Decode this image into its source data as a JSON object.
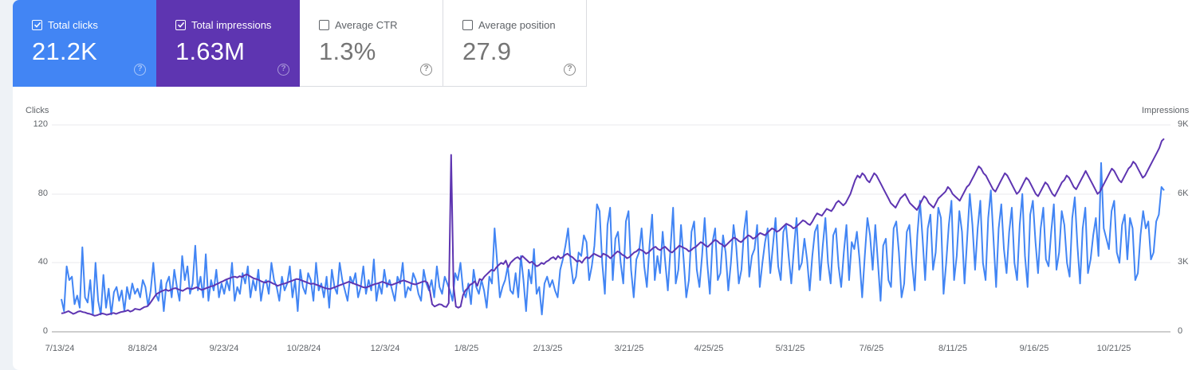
{
  "scorecards": [
    {
      "id": "clicks",
      "label": "Total clicks",
      "value": "21.2K",
      "checked": true,
      "color": "#4285f4"
    },
    {
      "id": "impressions",
      "label": "Total impressions",
      "value": "1.63M",
      "checked": true,
      "color": "#5e35b1"
    },
    {
      "id": "ctr",
      "label": "Average CTR",
      "value": "1.3%",
      "checked": false
    },
    {
      "id": "position",
      "label": "Average position",
      "value": "27.9",
      "checked": false
    }
  ],
  "icons": {
    "help": "help-circle-icon",
    "checkbox": "checkbox-icon"
  },
  "colors": {
    "clicks": "#4285f4",
    "impressions": "#5e35b1",
    "grid": "#e8eaed",
    "baseline": "#9e9e9e",
    "text": "#5f6368"
  },
  "chart_data": {
    "type": "line",
    "title": "",
    "xlabel": "",
    "ylabel": "Clicks",
    "y2label": "Impressions",
    "ylim": [
      0,
      120
    ],
    "y2lim": [
      0,
      9000
    ],
    "yticks": [
      "0",
      "40",
      "80",
      "120"
    ],
    "y2ticks": [
      "0",
      "3K",
      "6K",
      "9K"
    ],
    "grid": true,
    "legend": "scorecards",
    "x_ticks": [
      "7/13/24",
      "8/18/24",
      "9/23/24",
      "10/28/24",
      "12/3/24",
      "1/8/25",
      "2/13/25",
      "3/21/25",
      "4/25/25",
      "5/31/25",
      "7/6/25",
      "8/11/25",
      "9/16/25",
      "10/21/25"
    ],
    "x_start": "7/13/24",
    "x_end": "11/12/25",
    "series": [
      {
        "name": "Clicks",
        "axis": "left",
        "color": "#4285f4",
        "values": [
          19,
          12,
          38,
          30,
          32,
          16,
          21,
          14,
          49,
          20,
          17,
          30,
          10,
          40,
          18,
          10,
          33,
          14,
          25,
          10,
          23,
          26,
          18,
          24,
          12,
          26,
          19,
          28,
          22,
          25,
          20,
          30,
          26,
          15,
          24,
          40,
          22,
          18,
          30,
          12,
          28,
          32,
          20,
          36,
          26,
          18,
          44,
          30,
          38,
          22,
          28,
          50,
          24,
          32,
          20,
          45,
          18,
          30,
          24,
          36,
          20,
          28,
          22,
          30,
          24,
          40,
          18,
          26,
          22,
          34,
          28,
          38,
          20,
          30,
          24,
          36,
          18,
          28,
          30,
          22,
          40,
          30,
          26,
          18,
          32,
          24,
          28,
          38,
          20,
          30,
          12,
          36,
          26,
          22,
          34,
          30,
          18,
          40,
          24,
          28,
          20,
          32,
          14,
          36,
          26,
          22,
          40,
          30,
          24,
          18,
          32,
          28,
          34,
          20,
          26,
          38,
          22,
          30,
          24,
          42,
          18,
          28,
          22,
          36,
          26,
          30,
          24,
          18,
          32,
          28,
          40,
          20,
          26,
          24,
          34,
          30,
          22,
          18,
          36,
          28,
          24,
          30,
          20,
          38,
          26,
          22,
          32,
          28,
          24,
          18,
          34,
          30,
          40,
          24,
          20,
          28,
          16,
          36,
          26,
          22,
          30,
          24,
          14,
          32,
          28,
          60,
          40,
          20,
          26,
          30,
          38,
          24,
          22,
          34,
          20,
          44,
          30,
          12,
          36,
          28,
          48,
          22,
          26,
          10,
          28,
          32,
          26,
          30,
          24,
          20,
          36,
          42,
          50,
          60,
          40,
          28,
          32,
          46,
          44,
          56,
          52,
          30,
          38,
          50,
          74,
          70,
          40,
          22,
          62,
          72,
          30,
          54,
          58,
          40,
          28,
          64,
          70,
          36,
          20,
          42,
          46,
          60,
          38,
          26,
          50,
          68,
          30,
          44,
          34,
          58,
          40,
          24,
          48,
          72,
          28,
          36,
          62,
          42,
          20,
          30,
          58,
          64,
          36,
          26,
          44,
          66,
          40,
          22,
          52,
          60,
          30,
          34,
          56,
          46,
          24,
          40,
          62,
          50,
          28,
          36,
          58,
          70,
          32,
          44,
          48,
          62,
          26,
          40,
          52,
          60,
          34,
          50,
          66,
          38,
          30,
          58,
          62,
          44,
          28,
          48,
          66,
          36,
          40,
          54,
          42,
          24,
          44,
          58,
          62,
          30,
          50,
          66,
          40,
          28,
          56,
          60,
          38,
          26,
          46,
          62,
          30,
          52,
          48,
          58,
          42,
          20,
          44,
          66,
          56,
          36,
          62,
          40,
          18,
          50,
          54,
          30,
          26,
          60,
          64,
          46,
          20,
          28,
          58,
          62,
          40,
          24,
          56,
          76,
          54,
          30,
          60,
          68,
          36,
          46,
          72,
          66,
          22,
          40,
          62,
          76,
          30,
          44,
          70,
          58,
          28,
          54,
          80,
          62,
          36,
          60,
          76,
          40,
          30,
          66,
          82,
          54,
          26,
          60,
          74,
          48,
          34,
          58,
          72,
          40,
          30,
          62,
          80,
          44,
          26,
          68,
          76,
          52,
          34,
          60,
          72,
          42,
          38,
          58,
          74,
          36,
          46,
          70,
          62,
          40,
          32,
          66,
          78,
          50,
          28,
          60,
          72,
          34,
          42,
          56,
          66,
          44,
          98,
          60,
          54,
          48,
          70,
          76,
          46,
          40,
          62,
          68,
          42,
          66,
          60,
          30,
          34,
          56,
          70,
          60,
          64,
          42,
          46,
          64,
          68,
          84,
          82
        ]
      },
      {
        "name": "Impressions",
        "axis": "right",
        "color": "#5e35b1",
        "values": [
          800,
          820,
          860,
          900,
          840,
          780,
          820,
          880,
          900,
          860,
          840,
          800,
          780,
          740,
          700,
          720,
          760,
          800,
          780,
          740,
          760,
          800,
          820,
          780,
          820,
          860,
          880,
          900,
          940,
          880,
          920,
          1000,
          980,
          960,
          1020,
          1080,
          1100,
          1200,
          1350,
          1500,
          1640,
          1700,
          1760,
          1800,
          1840,
          1780,
          1820,
          1880,
          1900,
          1860,
          1820,
          1780,
          1840,
          1900,
          1880,
          1860,
          1900,
          1940,
          1880,
          1820,
          1860,
          1900,
          1940,
          1980,
          2000,
          2060,
          2100,
          2160,
          2200,
          2260,
          2300,
          2340,
          2380,
          2400,
          2360,
          2420,
          2380,
          2460,
          2500,
          2440,
          2380,
          2320,
          2300,
          2260,
          2200,
          2160,
          2140,
          2200,
          2160,
          2100,
          2060,
          2000,
          2040,
          2080,
          2100,
          2140,
          2180,
          2220,
          2260,
          2300,
          2280,
          2240,
          2200,
          2160,
          2120,
          2080,
          2100,
          2060,
          2020,
          1980,
          1940,
          1900,
          1880,
          1860,
          1900,
          1940,
          1980,
          2020,
          2060,
          2100,
          2140,
          2180,
          2140,
          2100,
          2060,
          2020,
          1980,
          1940,
          1920,
          1960,
          2000,
          2040,
          2080,
          2100,
          2140,
          2180,
          2140,
          2100,
          2060,
          2040,
          2080,
          2120,
          2160,
          2200,
          2240,
          2200,
          2160,
          2120,
          2080,
          2060,
          2100,
          2140,
          2180,
          2200,
          2140,
          1800,
          1200,
          1100,
          1150,
          1200,
          1180,
          1100,
          1080,
          1250,
          7700,
          2000,
          1100,
          1050,
          1100,
          1600,
          1800,
          1900,
          2050,
          2100,
          2200,
          2000,
          2300,
          2250,
          2400,
          2500,
          2600,
          2700,
          2650,
          2800,
          2900,
          3000,
          2950,
          3100,
          2800,
          3000,
          3100,
          3200,
          3250,
          3150,
          3300,
          3200,
          3100,
          3000,
          3050,
          2950,
          2850,
          2900,
          3000,
          2950,
          3050,
          3100,
          3200,
          3250,
          3150,
          3300,
          3200,
          3250,
          3350,
          3400,
          3300,
          3250,
          3150,
          3050,
          3100,
          3000,
          3150,
          3250,
          3200,
          3300,
          3400,
          3350,
          3300,
          3250,
          3400,
          3350,
          3300,
          3200,
          3300,
          3400,
          3500,
          3450,
          3350,
          3300,
          3200,
          3250,
          3350,
          3450,
          3500,
          3600,
          3550,
          3500,
          3400,
          3450,
          3550,
          3650,
          3700,
          3600,
          3550,
          3650,
          3700,
          3600,
          3500,
          3450,
          3550,
          3650,
          3750,
          3700,
          3650,
          3600,
          3500,
          3550,
          3650,
          3700,
          3800,
          3900,
          3850,
          3750,
          3700,
          3800,
          3900,
          4000,
          3950,
          3850,
          3800,
          3700,
          3800,
          3900,
          4000,
          4100,
          4050,
          3950,
          3900,
          4000,
          4100,
          4200,
          4150,
          4050,
          4100,
          4200,
          4300,
          4250,
          4200,
          4300,
          4400,
          4500,
          4450,
          4350,
          4400,
          4500,
          4600,
          4700,
          4650,
          4600,
          4500,
          4550,
          4650,
          4750,
          4850,
          4800,
          4700,
          4650,
          4800,
          5000,
          5150,
          5100,
          5050,
          5200,
          5350,
          5300,
          5250,
          5400,
          5600,
          5700,
          5600,
          5500,
          5600,
          5800,
          6000,
          6300,
          6600,
          6800,
          6700,
          6900,
          6800,
          6600,
          6500,
          6700,
          6900,
          6800,
          6600,
          6400,
          6200,
          6000,
          5800,
          5600,
          5500,
          5400,
          5600,
          5800,
          5900,
          6000,
          5800,
          5600,
          5500,
          5400,
          5300,
          5500,
          5700,
          5900,
          5800,
          5600,
          5500,
          5400,
          5600,
          5800,
          5900,
          6000,
          6100,
          6300,
          6200,
          6000,
          5900,
          5800,
          5700,
          5900,
          6100,
          6300,
          6400,
          6600,
          6800,
          7000,
          7200,
          7100,
          6900,
          6800,
          6600,
          6400,
          6200,
          6100,
          6300,
          6500,
          6700,
          6900,
          6800,
          6600,
          6400,
          6200,
          6000,
          6100,
          6300,
          6500,
          6700,
          6600,
          6400,
          6200,
          6000,
          5900,
          6100,
          6300,
          6500,
          6400,
          6200,
          6000,
          5900,
          6100,
          6300,
          6500,
          6600,
          6800,
          6700,
          6500,
          6300,
          6200,
          6400,
          6600,
          6800,
          7000,
          6800,
          6600,
          6400,
          6200,
          6000,
          6100,
          6300,
          6500,
          6700,
          6900,
          7100,
          7000,
          6800,
          6600,
          6500,
          6700,
          6900,
          7100,
          7200,
          7400,
          7300,
          7100,
          6900,
          6700,
          6800,
          7000,
          7200,
          7400,
          7600,
          7800,
          8000,
          8300,
          8400
        ]
      }
    ]
  }
}
